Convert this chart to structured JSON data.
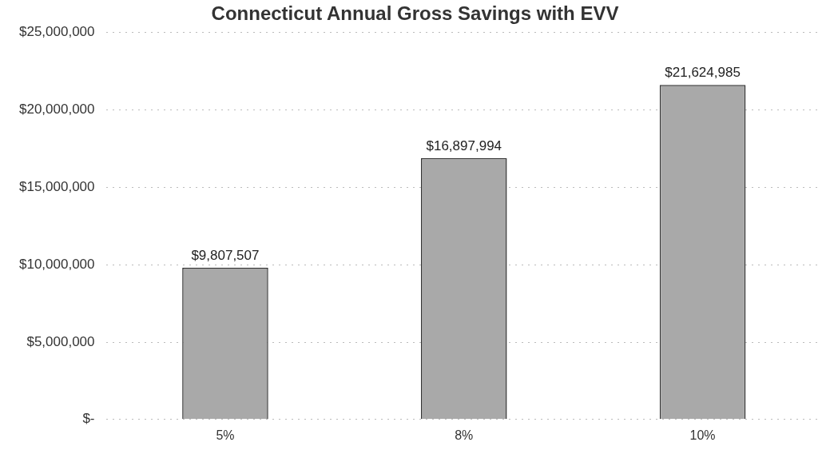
{
  "chart_data": {
    "type": "bar",
    "title": "Connecticut Annual Gross Savings with EVV",
    "categories": [
      "5%",
      "8%",
      "10%"
    ],
    "values": [
      9807507,
      16897994,
      21624985
    ],
    "value_labels": [
      "$9,807,507",
      "$16,897,994",
      "$21,624,985"
    ],
    "color": "#a9a9a9",
    "ylim": [
      0,
      25000000
    ],
    "yticks": [
      {
        "value": 0,
        "label": "$-"
      },
      {
        "value": 5000000,
        "label": "$5,000,000"
      },
      {
        "value": 10000000,
        "label": "$10,000,000"
      },
      {
        "value": 15000000,
        "label": "$15,000,000"
      },
      {
        "value": 20000000,
        "label": "$20,000,000"
      },
      {
        "value": 25000000,
        "label": "$25,000,000"
      }
    ],
    "grid": "y",
    "legend": false
  }
}
